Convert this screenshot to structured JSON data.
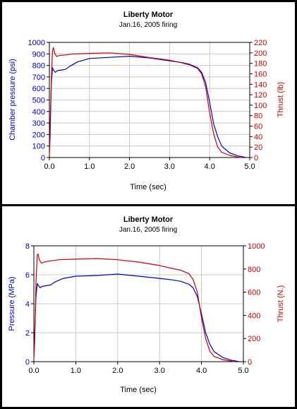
{
  "chart_data": [
    {
      "type": "line",
      "title": "Liberty Motor",
      "subtitle": "Jan.16, 2005 firing",
      "xlabel": "Time (sec)",
      "ylabel_left": "Chamber pressure (psi)",
      "ylabel_right": "Thrust (lb)",
      "xlim": [
        0,
        5
      ],
      "ylim_left": [
        0,
        1000
      ],
      "ylim_right": [
        0,
        220
      ],
      "xticks": [
        "0.0",
        "1.0",
        "2.0",
        "3.0",
        "4.0",
        "5.0"
      ],
      "yticks_left": [
        "0",
        "100",
        "200",
        "300",
        "400",
        "500",
        "600",
        "700",
        "800",
        "900",
        "1000"
      ],
      "yticks_right": [
        "0",
        "20",
        "40",
        "60",
        "80",
        "100",
        "120",
        "140",
        "160",
        "180",
        "200",
        "220"
      ],
      "grid": true,
      "colors": {
        "pressure": "#0000cc",
        "thrust": "#cc0000"
      },
      "series": [
        {
          "axis": "left",
          "color": "#0000cc",
          "x": [
            0,
            0.02,
            0.05,
            0.08,
            0.1,
            0.15,
            0.2,
            0.3,
            0.4,
            0.5,
            0.7,
            1.0,
            1.5,
            2.0,
            2.5,
            3.0,
            3.3,
            3.5,
            3.7,
            3.8,
            3.9,
            4.0,
            4.1,
            4.2,
            4.3,
            4.5,
            4.7,
            4.85,
            4.9
          ],
          "y": [
            50,
            300,
            650,
            780,
            760,
            740,
            755,
            760,
            765,
            790,
            830,
            860,
            870,
            880,
            865,
            840,
            825,
            810,
            780,
            740,
            650,
            480,
            290,
            180,
            100,
            40,
            15,
            5,
            0
          ]
        },
        {
          "axis": "right",
          "color": "#cc0000",
          "x": [
            0,
            0.02,
            0.05,
            0.08,
            0.1,
            0.13,
            0.18,
            0.25,
            0.4,
            0.6,
            1.0,
            1.5,
            2.0,
            2.5,
            3.0,
            3.3,
            3.5,
            3.7,
            3.8,
            3.9,
            4.0,
            4.1,
            4.2,
            4.3,
            4.5,
            4.7,
            4.8
          ],
          "y": [
            5,
            40,
            150,
            205,
            210,
            200,
            193,
            195,
            196,
            198,
            199,
            200,
            197,
            191,
            186,
            181,
            177,
            170,
            160,
            135,
            85,
            45,
            20,
            10,
            4,
            1,
            0
          ]
        }
      ]
    },
    {
      "type": "line",
      "title": "Liberty Motor",
      "subtitle": "Jan.16, 2005 firing",
      "xlabel": "Time (sec)",
      "ylabel_left": "Pressure (MPa)",
      "ylabel_right": "Thrust (N.)",
      "xlim": [
        0,
        5
      ],
      "ylim_left": [
        0,
        8
      ],
      "ylim_right": [
        0,
        1000
      ],
      "xticks": [
        "0.0",
        "1.0",
        "2.0",
        "3.0",
        "4.0",
        "5.0"
      ],
      "yticks_left": [
        "0",
        "2",
        "4",
        "6",
        "8"
      ],
      "yticks_right": [
        "0",
        "200",
        "400",
        "600",
        "800",
        "1000"
      ],
      "grid": true,
      "colors": {
        "pressure": "#0000cc",
        "thrust": "#cc0000"
      },
      "series": [
        {
          "axis": "left",
          "color": "#0000cc",
          "x": [
            0,
            0.02,
            0.05,
            0.08,
            0.1,
            0.15,
            0.2,
            0.3,
            0.4,
            0.5,
            0.7,
            1.0,
            1.5,
            2.0,
            2.5,
            3.0,
            3.3,
            3.5,
            3.7,
            3.8,
            3.9,
            4.0,
            4.1,
            4.2,
            4.3,
            4.5,
            4.7,
            4.85,
            4.9
          ],
          "y": [
            0.3,
            2.0,
            4.5,
            5.4,
            5.3,
            5.1,
            5.2,
            5.25,
            5.3,
            5.5,
            5.75,
            5.9,
            5.95,
            6.05,
            5.9,
            5.75,
            5.65,
            5.55,
            5.35,
            5.1,
            4.5,
            3.3,
            2.0,
            1.2,
            0.7,
            0.3,
            0.1,
            0.03,
            0
          ]
        },
        {
          "axis": "right",
          "color": "#cc0000",
          "x": [
            0,
            0.02,
            0.05,
            0.08,
            0.1,
            0.13,
            0.18,
            0.25,
            0.4,
            0.6,
            1.0,
            1.5,
            2.0,
            2.5,
            3.0,
            3.3,
            3.5,
            3.7,
            3.8,
            3.9,
            4.0,
            4.1,
            4.2,
            4.3,
            4.5,
            4.7,
            4.8
          ],
          "y": [
            20,
            180,
            680,
            920,
            930,
            880,
            850,
            860,
            870,
            880,
            885,
            890,
            880,
            860,
            830,
            805,
            790,
            760,
            710,
            600,
            380,
            200,
            90,
            45,
            18,
            5,
            0
          ]
        }
      ]
    }
  ]
}
